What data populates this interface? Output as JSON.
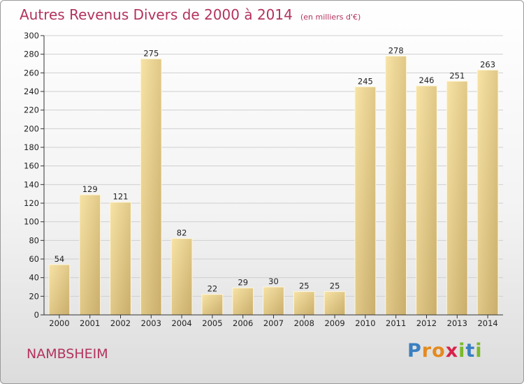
{
  "header": {
    "title": "Autres Revenus Divers de 2000 à 2014",
    "unit": "(en milliers d'€)"
  },
  "footer": {
    "commune": "NAMBSHEIM",
    "logo_letters": [
      "P",
      "r",
      "o",
      "x",
      "i",
      "t",
      "i"
    ],
    "logo_colors": [
      "#3a7fc1",
      "#e58a1f",
      "#e58a1f",
      "#d8234a",
      "#7ab929",
      "#3a7fc1",
      "#7ab929"
    ]
  },
  "colors": {
    "title": "#b3325f",
    "bar_light": "#f7e3a5",
    "bar_dark": "#c9ad6b",
    "grid": "#cfcfcf",
    "axis": "#333333"
  },
  "chart_data": {
    "type": "bar",
    "title": "Autres Revenus Divers de 2000 à 2014",
    "subtitle": "(en milliers d'€)",
    "xlabel": "",
    "ylabel": "",
    "categories": [
      "2000",
      "2001",
      "2002",
      "2003",
      "2004",
      "2005",
      "2006",
      "2007",
      "2008",
      "2009",
      "2010",
      "2011",
      "2012",
      "2013",
      "2014"
    ],
    "values": [
      54,
      129,
      121,
      275,
      82,
      22,
      29,
      30,
      25,
      25,
      245,
      278,
      246,
      251,
      263
    ],
    "ylim": [
      0,
      300
    ],
    "yticks": [
      0,
      20,
      40,
      60,
      80,
      100,
      120,
      140,
      160,
      180,
      200,
      220,
      240,
      260,
      280,
      300
    ],
    "grid": true,
    "data_labels": true
  }
}
